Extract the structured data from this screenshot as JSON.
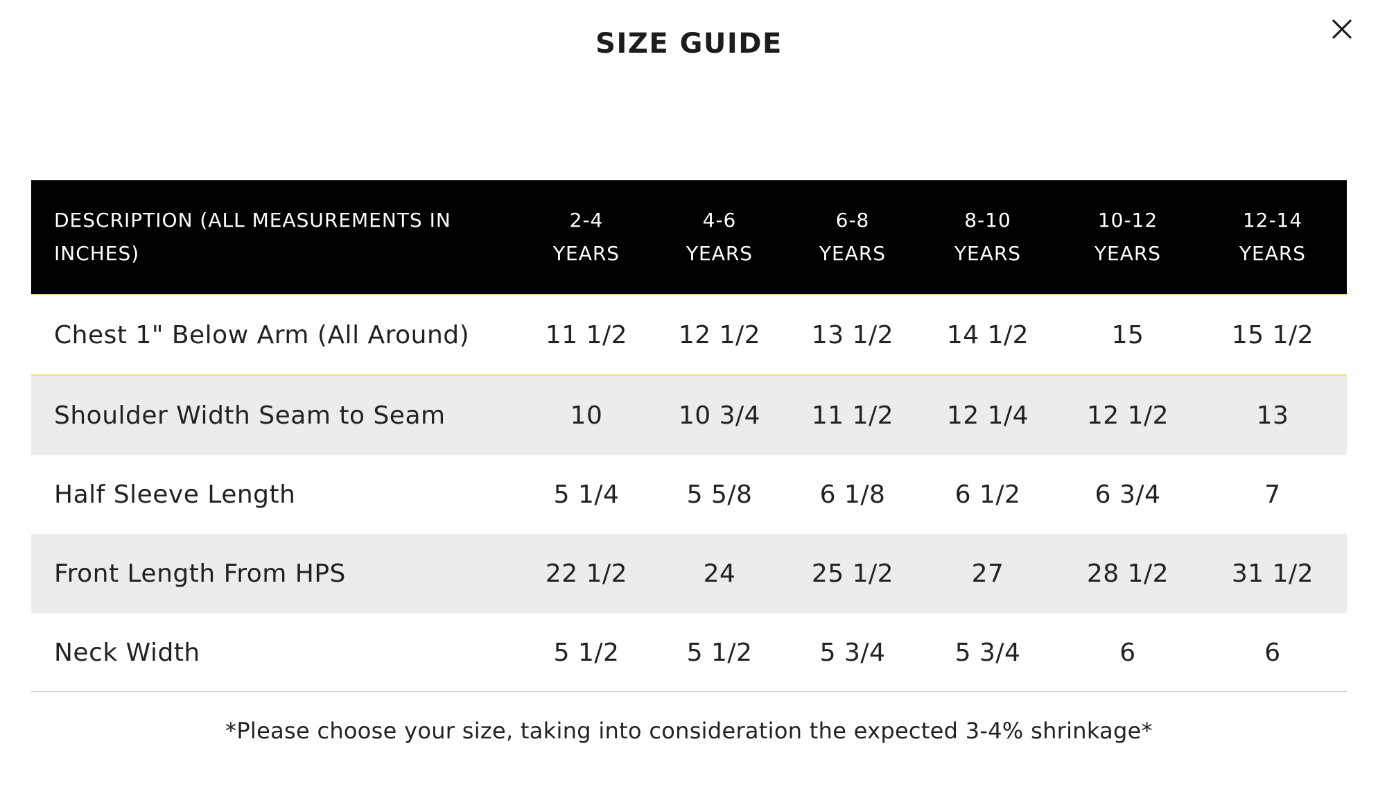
{
  "modal": {
    "title": "SIZE GUIDE",
    "close_icon": "close-icon"
  },
  "table": {
    "description_header": [
      "DESCRIPTION (ALL MEASUREMENTS IN",
      "INCHES)"
    ],
    "size_headers": [
      [
        "2-4",
        "YEARS"
      ],
      [
        "4-6",
        "YEARS"
      ],
      [
        "6-8",
        "YEARS"
      ],
      [
        "8-10",
        "YEARS"
      ],
      [
        "10-12",
        "YEARS"
      ],
      [
        "12-14",
        "YEARS"
      ]
    ],
    "rows": [
      {
        "label": "Chest 1\" Below Arm (All Around)",
        "values": [
          "11 1/2",
          "12 1/2",
          "13 1/2",
          "14 1/2",
          "15",
          "15 1/2"
        ]
      },
      {
        "label": "Shoulder Width Seam to Seam",
        "values": [
          "10",
          "10 3/4",
          "11 1/2",
          "12 1/4",
          "12 1/2",
          "13"
        ]
      },
      {
        "label": "Half Sleeve Length",
        "values": [
          "5 1/4",
          "5 5/8",
          "6 1/8",
          "6 1/2",
          "6 3/4",
          "7"
        ]
      },
      {
        "label": "Front Length From HPS",
        "values": [
          "22 1/2",
          "24",
          "25 1/2",
          "27",
          "28 1/2",
          "31 1/2"
        ]
      },
      {
        "label": "Neck Width",
        "values": [
          "5 1/2",
          "5 1/2",
          "5 3/4",
          "5 3/4",
          "6",
          "6"
        ]
      }
    ]
  },
  "note": "*Please choose your size, taking into consideration the expected 3-4% shrinkage*",
  "colors": {
    "header_background": "#000000",
    "header_text": "#ffffff",
    "row_alt_background": "#ebeceb",
    "accent_line": "#e8df8c",
    "text": "#222222"
  }
}
